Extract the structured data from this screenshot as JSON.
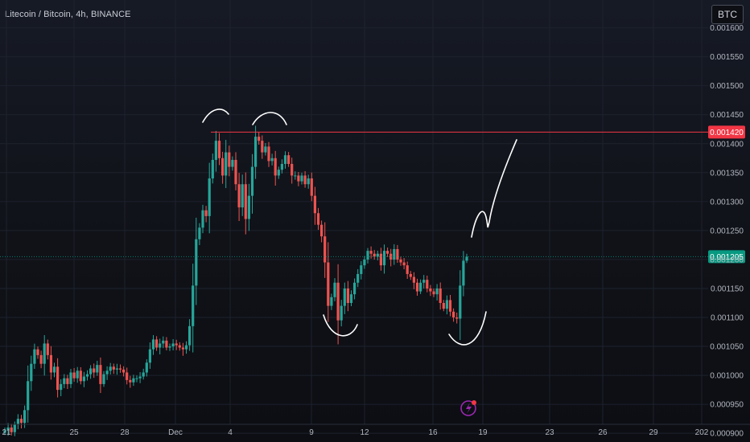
{
  "header": {
    "title": "Litecoin / Bitcoin, 4h, BINANCE"
  },
  "currency_button": {
    "label": "BTC"
  },
  "colors": {
    "up": "#26a69a",
    "down": "#ef5350",
    "resistance": "#f23645",
    "price_badge": "#089981",
    "drawing": "#ffffff",
    "grid": "#1e222d",
    "event_icon": "#9c27b0"
  },
  "icons": {
    "event": "lightning-bolt-icon"
  },
  "chart_data": {
    "type": "candlestick",
    "title": "Litecoin / Bitcoin, 4h, BINANCE",
    "xlabel": "",
    "ylabel": "",
    "ylim": [
      0.000885,
      0.001648
    ],
    "x_ticks": [
      "21",
      "25",
      "28",
      "Dec",
      "4",
      "9",
      "12",
      "16",
      "19",
      "23",
      "26",
      "29",
      "202"
    ],
    "y_ticks": [
      "0.000900",
      "0.000950",
      "0.001000",
      "0.001050",
      "0.001100",
      "0.001150",
      "0.001200",
      "0.001250",
      "0.001300",
      "0.001350",
      "0.001400",
      "0.001450",
      "0.001500",
      "0.001550",
      "0.001600"
    ],
    "grid": true,
    "price_levels": [
      {
        "label": "0.001420",
        "value": 0.00142,
        "color": "#f23645",
        "kind": "horizontal line"
      },
      {
        "label": "0.001205",
        "value": 0.001205,
        "color": "#089981",
        "kind": "last price"
      }
    ],
    "close": [
      0.000905,
      0.00091,
      0.000902,
      0.000915,
      0.000925,
      0.000918,
      0.00094,
      0.00099,
      0.00102,
      0.001045,
      0.001035,
      0.00102,
      0.001055,
      0.001035,
      0.001005,
      0.001015,
      0.000975,
      0.000985,
      0.000995,
      0.000985,
      0.001005,
      0.000995,
      0.001008,
      0.00099,
      0.000998,
      0.001002,
      0.001012,
      0.001005,
      0.001018,
      0.000985,
      0.001002,
      0.001008,
      0.001015,
      0.00101,
      0.001012,
      0.00101,
      0.001005,
      0.000992,
      0.000988,
      0.000995,
      0.000995,
      0.000998,
      0.001005,
      0.001022,
      0.001045,
      0.001062,
      0.001048,
      0.001055,
      0.00106,
      0.001048,
      0.00105,
      0.001055,
      0.001052,
      0.001048,
      0.001045,
      0.001052,
      0.001085,
      0.001155,
      0.001235,
      0.001255,
      0.001285,
      0.001275,
      0.00134,
      0.001372,
      0.001405,
      0.001375,
      0.001345,
      0.001385,
      0.00136,
      0.001372,
      0.00133,
      0.00129,
      0.00133,
      0.00127,
      0.00131,
      0.00136,
      0.001412,
      0.001405,
      0.001385,
      0.001395,
      0.00137,
      0.001375,
      0.001345,
      0.001355,
      0.001365,
      0.00138,
      0.001365,
      0.001345,
      0.001345,
      0.001335,
      0.001345,
      0.00133,
      0.00134,
      0.00131,
      0.00128,
      0.00126,
      0.00124,
      0.001195,
      0.00112,
      0.001135,
      0.00116,
      0.001095,
      0.00112,
      0.00115,
      0.001125,
      0.00114,
      0.00116,
      0.001175,
      0.00119,
      0.0012,
      0.001215,
      0.00121,
      0.001205,
      0.00121,
      0.00119,
      0.001215,
      0.00121,
      0.0012,
      0.001218,
      0.0012,
      0.001195,
      0.00119,
      0.001175,
      0.00117,
      0.00116,
      0.001145,
      0.00116,
      0.001165,
      0.00115,
      0.001145,
      0.00114,
      0.00115,
      0.001125,
      0.001115,
      0.00113,
      0.00111,
      0.0011,
      0.001098,
      0.001155,
      0.001198,
      0.001205
    ],
    "annotations": [
      "hand-drawn arcs over the two highs",
      "hand-drawn cups under the two lows",
      "hand-drawn projected path toward 0.001420"
    ]
  }
}
